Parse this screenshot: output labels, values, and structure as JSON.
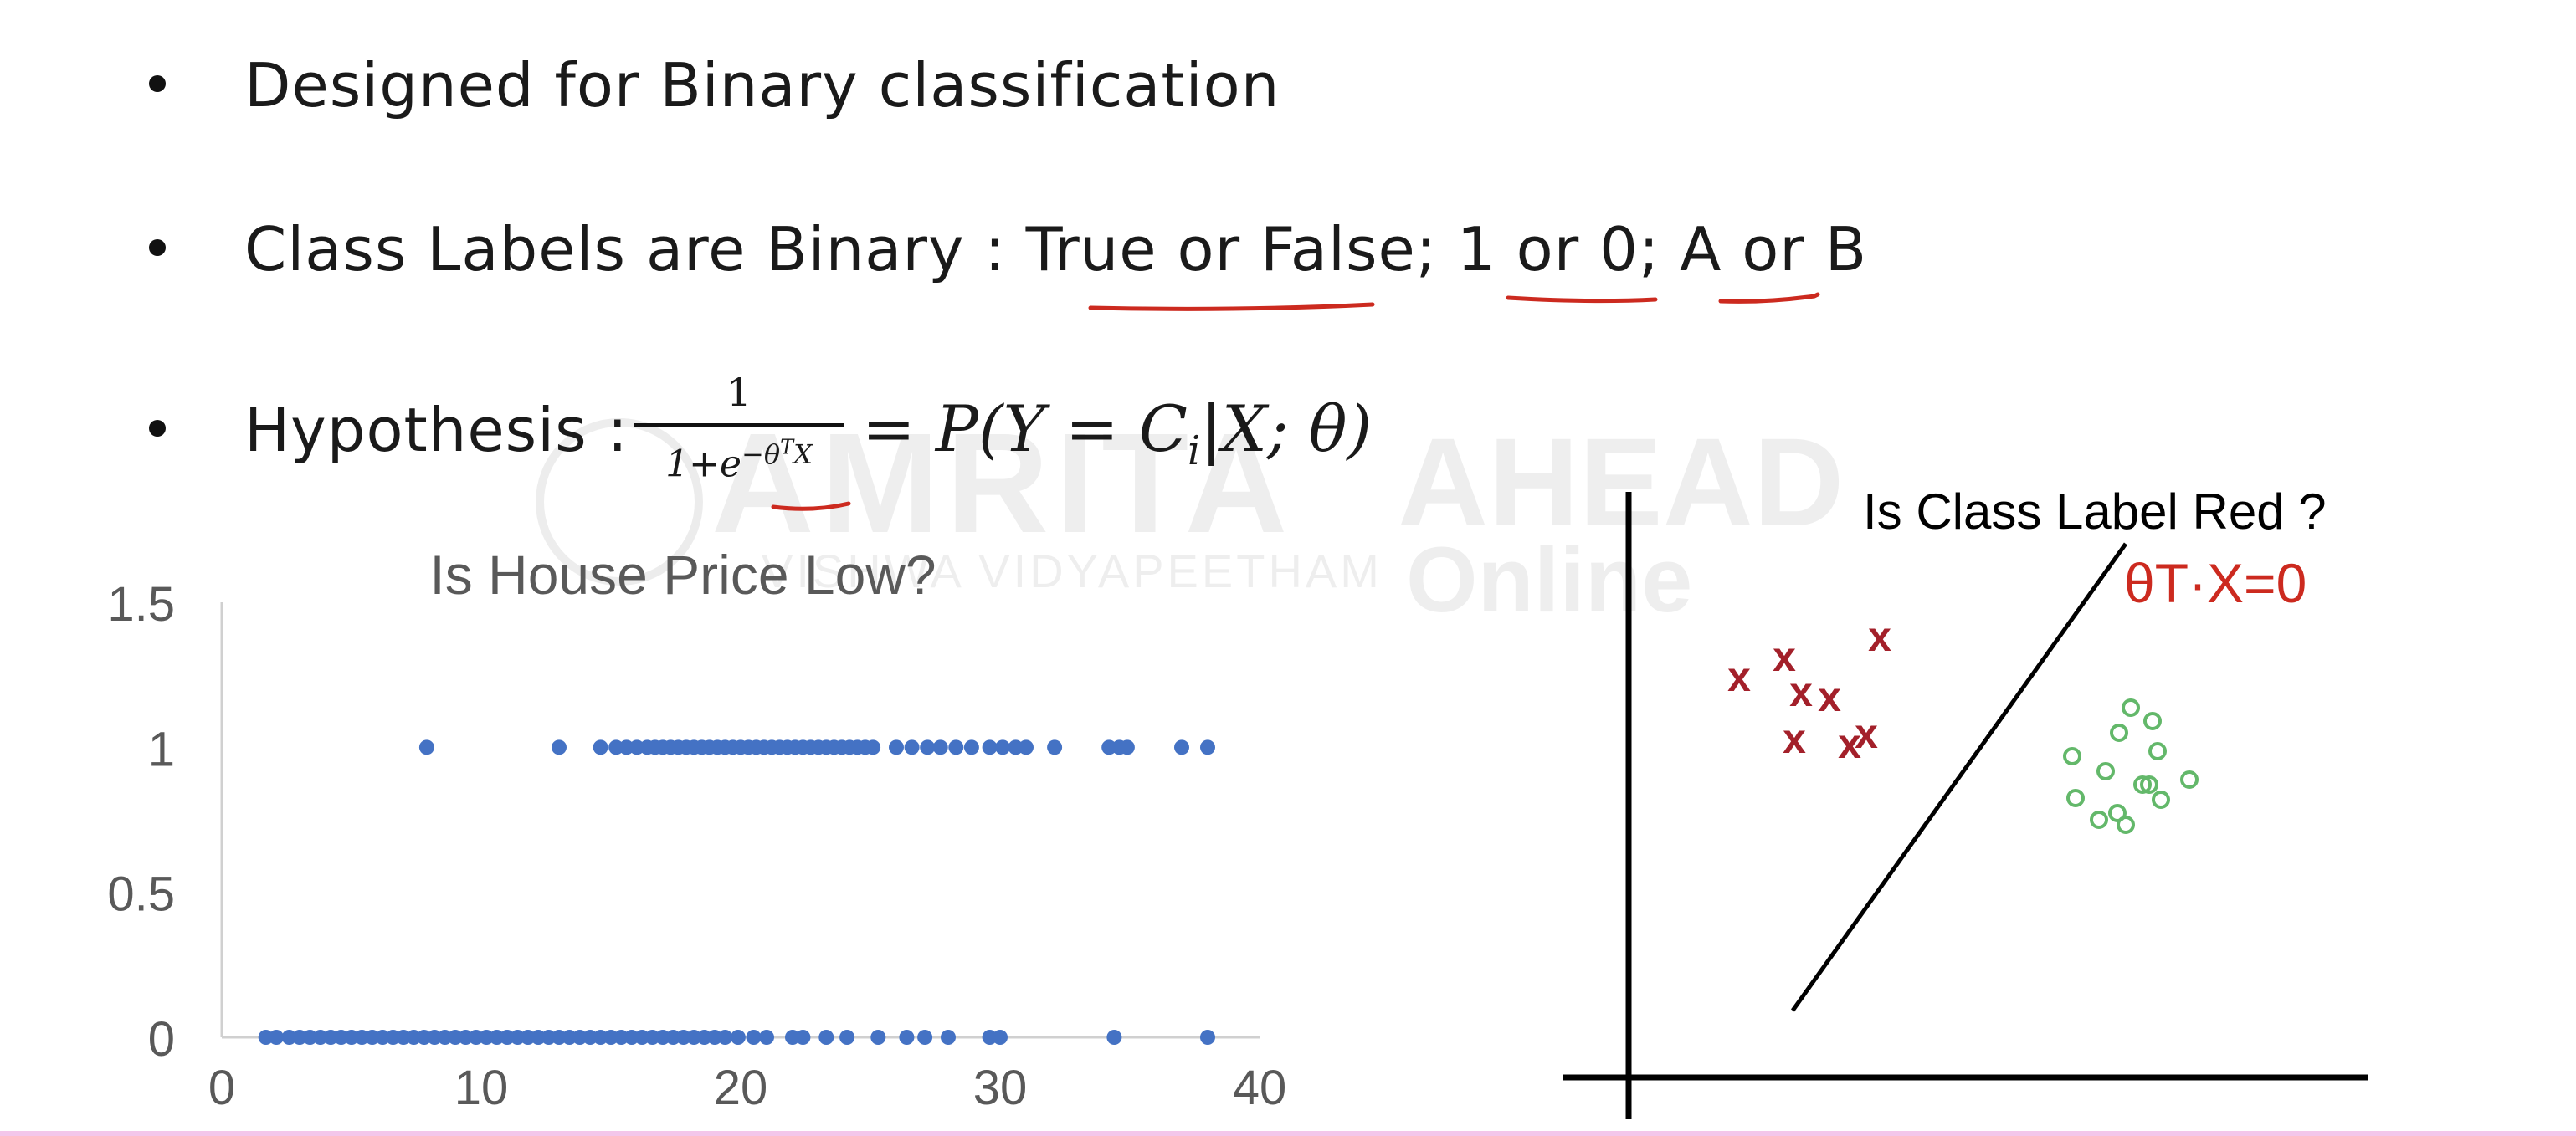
{
  "bullets": [
    {
      "text": "Designed for Binary classification"
    },
    {
      "text": "Class Labels are Binary : True or False; 1 or 0; A or B"
    },
    {
      "text": "Hypothesis : "
    }
  ],
  "formula": {
    "numerator": "1",
    "denominator_base": "1+e",
    "denominator_exp": "−θ",
    "denominator_exp_sup": "T",
    "denominator_tail": "X",
    "equals": "= ",
    "rhs_a": "P(Y = C",
    "rhs_sub": "i",
    "rhs_b": "|X; θ)"
  },
  "watermark": {
    "brand": "AMRITA",
    "tagline": "VISHWA VIDYAPEETHAM",
    "right_top": "AHEAD",
    "right_bottom": "Online"
  },
  "annotation_color": "#cc2a1f",
  "chart_data": {
    "type": "scatter",
    "title": "Is House Price Low?",
    "xlabel": "",
    "ylabel": "",
    "xlim": [
      0,
      40
    ],
    "ylim": [
      0,
      1.5
    ],
    "x_ticks": [
      "0",
      "10",
      "20",
      "30",
      "40"
    ],
    "y_ticks": [
      "0",
      "0.5",
      "1",
      "1.5"
    ],
    "grid": false,
    "color": "#4472c4",
    "series": [
      {
        "y": 1,
        "x": [
          7.9,
          13.0,
          14.6,
          15.2,
          15.6,
          16.0,
          16.4,
          16.7,
          17.0,
          17.3,
          17.6,
          17.9,
          18.2,
          18.5,
          18.8,
          19.1,
          19.4,
          19.7,
          20.0,
          20.3,
          20.6,
          20.9,
          21.2,
          21.5,
          21.8,
          22.1,
          22.4,
          22.7,
          23.0,
          23.3,
          23.6,
          23.9,
          24.2,
          24.5,
          24.8,
          25.1,
          26.0,
          26.6,
          27.2,
          27.7,
          28.3,
          28.9,
          29.6,
          30.1,
          30.6,
          31.0,
          32.1,
          34.2,
          34.6,
          34.9,
          37.0,
          38.0
        ]
      },
      {
        "y": 0,
        "x": [
          1.7,
          2.1,
          2.6,
          3.0,
          3.4,
          3.8,
          4.2,
          4.6,
          5.0,
          5.4,
          5.8,
          6.2,
          6.6,
          7.0,
          7.4,
          7.8,
          8.2,
          8.6,
          9.0,
          9.4,
          9.8,
          10.2,
          10.6,
          11.0,
          11.4,
          11.8,
          12.2,
          12.6,
          13.0,
          13.4,
          13.8,
          14.2,
          14.6,
          15.0,
          15.4,
          15.8,
          16.2,
          16.6,
          17.0,
          17.4,
          17.8,
          18.2,
          18.6,
          19.0,
          19.4,
          19.9,
          20.5,
          21.0,
          22.0,
          22.4,
          23.3,
          24.1,
          25.3,
          26.4,
          27.1,
          28.0,
          29.6,
          30.0,
          34.4,
          38.0
        ]
      }
    ]
  },
  "diagram": {
    "title": "Is Class Label Red ?",
    "annotation": "θT·X=0",
    "red_marker": "x",
    "green_marker": "o",
    "red_color": "#a3202a",
    "green_color": "#63b86a"
  }
}
